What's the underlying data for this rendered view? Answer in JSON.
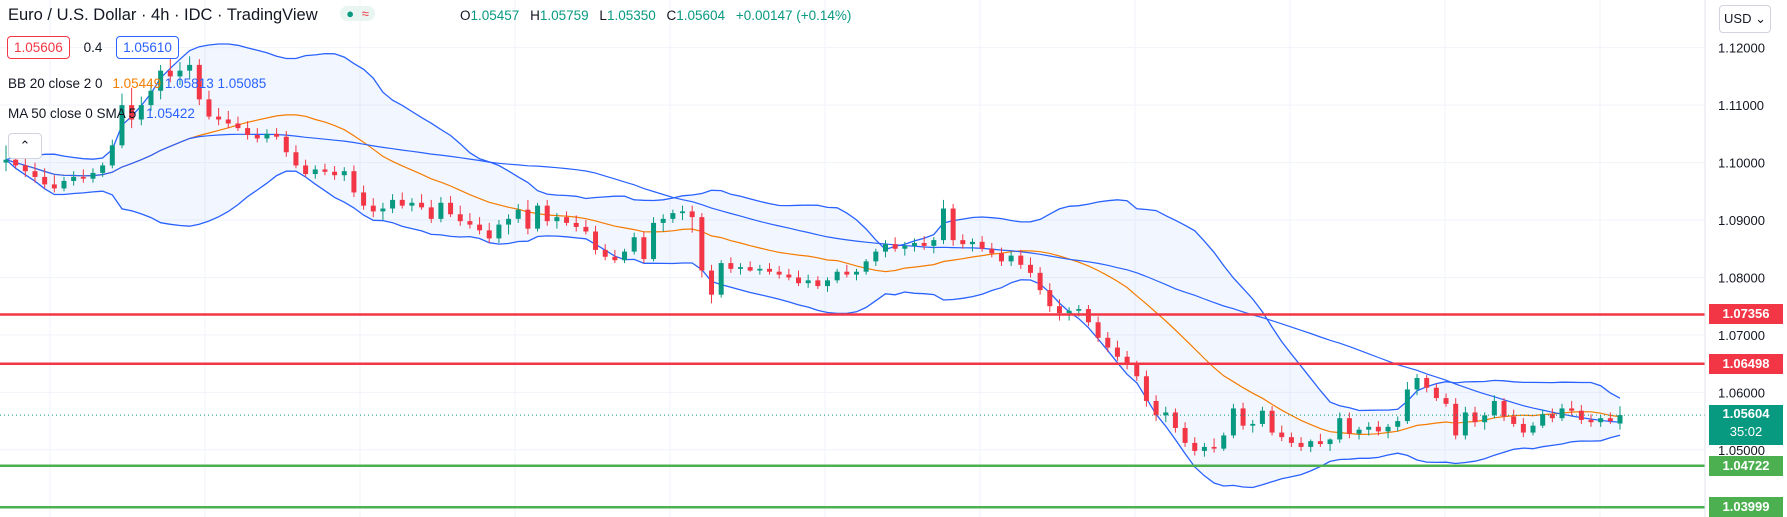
{
  "header": {
    "title": "Euro / U.S. Dollar · 4h · IDC · TradingView",
    "status_dot": "●",
    "status_wave": "≈"
  },
  "ohlc": {
    "o_label": "O",
    "o": "1.05457",
    "h_label": "H",
    "h": "1.05759",
    "l_label": "L",
    "l": "1.05350",
    "c_label": "C",
    "c": "1.05604",
    "change": "+0.00147 (+0.14%)"
  },
  "bidask": {
    "sell": "1.05606",
    "spread": "0.4",
    "buy": "1.05610"
  },
  "indicators": {
    "bb": {
      "name": "BB 20 close 2 0",
      "basis": "1.05449",
      "upper": "1.05813",
      "lower": "1.05085",
      "basis_color": "#f57c00",
      "band_color": "#2962ff"
    },
    "ma": {
      "name": "MA 50 close 0 SMA 5",
      "value": "1.05422",
      "color": "#2962ff"
    }
  },
  "price_axis": {
    "currency": "USD",
    "ticks": [
      "1.12000",
      "1.11000",
      "1.10000",
      "1.09000",
      "1.08000",
      "1.07000",
      "1.06000",
      "1.05000"
    ]
  },
  "horizontal_lines": [
    {
      "value": "1.07356",
      "color": "#f23645"
    },
    {
      "value": "1.06498",
      "color": "#f23645"
    },
    {
      "value": "1.04722",
      "color": "#4caf50"
    },
    {
      "value": "1.03999",
      "color": "#4caf50"
    }
  ],
  "current_price": {
    "value": "1.05604",
    "countdown": "35:02",
    "color": "#089981"
  },
  "colors": {
    "up": "#089981",
    "down": "#f23645",
    "grid": "#f0f3fa"
  },
  "chart_data": {
    "type": "candlestick",
    "ylim": [
      1.0383,
      1.1283
    ],
    "candles": [
      [
        1.1,
        1.103,
        1.0985,
        1.1005
      ],
      [
        1.1005,
        1.102,
        1.099,
        1.0995
      ],
      [
        1.0995,
        1.101,
        1.0975,
        1.0985
      ],
      [
        1.0985,
        1.1,
        1.0965,
        1.0975
      ],
      [
        1.0975,
        1.099,
        1.0955,
        1.0962
      ],
      [
        1.0962,
        1.0978,
        1.0948,
        1.0955
      ],
      [
        1.0955,
        1.0975,
        1.095,
        1.0968
      ],
      [
        1.0968,
        1.0985,
        1.096,
        1.0975
      ],
      [
        1.0975,
        1.0988,
        1.0965,
        1.0972
      ],
      [
        1.0972,
        1.099,
        1.0965,
        1.0982
      ],
      [
        1.0982,
        1.1,
        1.0975,
        1.0995
      ],
      [
        1.0995,
        1.104,
        1.099,
        1.103
      ],
      [
        1.103,
        1.112,
        1.1025,
        1.11
      ],
      [
        1.11,
        1.113,
        1.106,
        1.1075
      ],
      [
        1.1075,
        1.1115,
        1.1065,
        1.11
      ],
      [
        1.11,
        1.114,
        1.109,
        1.1125
      ],
      [
        1.1125,
        1.117,
        1.111,
        1.116
      ],
      [
        1.116,
        1.118,
        1.114,
        1.115
      ],
      [
        1.115,
        1.1175,
        1.1135,
        1.116
      ],
      [
        1.116,
        1.1185,
        1.1145,
        1.117
      ],
      [
        1.117,
        1.118,
        1.11,
        1.111
      ],
      [
        1.111,
        1.1125,
        1.1075,
        1.108
      ],
      [
        1.108,
        1.1095,
        1.1065,
        1.1075
      ],
      [
        1.1075,
        1.109,
        1.106,
        1.1068
      ],
      [
        1.1068,
        1.108,
        1.1055,
        1.106
      ],
      [
        1.106,
        1.1072,
        1.104,
        1.1048
      ],
      [
        1.1048,
        1.106,
        1.1035,
        1.1042
      ],
      [
        1.1042,
        1.1058,
        1.1035,
        1.105
      ],
      [
        1.105,
        1.106,
        1.104,
        1.1045
      ],
      [
        1.1045,
        1.1055,
        1.101,
        1.1018
      ],
      [
        1.1018,
        1.103,
        1.099,
        1.0995
      ],
      [
        1.0995,
        1.1005,
        1.0975,
        1.098
      ],
      [
        1.098,
        1.0995,
        1.0972,
        1.0988
      ],
      [
        1.0988,
        1.0998,
        1.0978,
        1.0984
      ],
      [
        1.0984,
        1.0994,
        1.097,
        1.0978
      ],
      [
        1.0978,
        1.0992,
        1.0968,
        1.0985
      ],
      [
        1.0985,
        1.0995,
        1.094,
        1.0948
      ],
      [
        1.0948,
        1.096,
        1.0918,
        1.0925
      ],
      [
        1.0925,
        1.0938,
        1.0905,
        1.0915
      ],
      [
        1.0915,
        1.093,
        1.09,
        1.092
      ],
      [
        1.092,
        1.0945,
        1.0912,
        1.0935
      ],
      [
        1.0935,
        1.0948,
        1.092,
        1.0925
      ],
      [
        1.0925,
        1.0938,
        1.0915,
        1.093
      ],
      [
        1.093,
        1.0945,
        1.0918,
        1.0922
      ],
      [
        1.0922,
        1.0935,
        1.0895,
        1.0902
      ],
      [
        1.0902,
        1.094,
        1.0896,
        1.093
      ],
      [
        1.093,
        1.0942,
        1.0905,
        1.091
      ],
      [
        1.091,
        1.0925,
        1.089,
        1.0898
      ],
      [
        1.0898,
        1.0912,
        1.0885,
        1.0892
      ],
      [
        1.0892,
        1.0905,
        1.0875,
        1.0882
      ],
      [
        1.0882,
        1.0895,
        1.086,
        1.0868
      ],
      [
        1.0868,
        1.09,
        1.086,
        1.0892
      ],
      [
        1.0892,
        1.091,
        1.0875,
        1.0902
      ],
      [
        1.0902,
        1.0928,
        1.0895,
        1.0918
      ],
      [
        1.0918,
        1.0935,
        1.0875,
        1.0885
      ],
      [
        1.0885,
        1.093,
        1.088,
        1.0925
      ],
      [
        1.0925,
        1.0935,
        1.089,
        1.0898
      ],
      [
        1.0898,
        1.0912,
        1.0885,
        1.0905
      ],
      [
        1.0905,
        1.0915,
        1.089,
        1.0895
      ],
      [
        1.0895,
        1.0908,
        1.088,
        1.0888
      ],
      [
        1.0888,
        1.09,
        1.0875,
        1.088
      ],
      [
        1.088,
        1.089,
        1.084,
        1.0848
      ],
      [
        1.0848,
        1.0858,
        1.083,
        1.0836
      ],
      [
        1.0836,
        1.0848,
        1.0825,
        1.083
      ],
      [
        1.083,
        1.085,
        1.0825,
        1.0845
      ],
      [
        1.0845,
        1.0878,
        1.084,
        1.087
      ],
      [
        1.087,
        1.088,
        1.0825,
        1.0832
      ],
      [
        1.0832,
        1.0905,
        1.0828,
        1.0895
      ],
      [
        1.0895,
        1.091,
        1.088,
        1.0902
      ],
      [
        1.0902,
        1.0918,
        1.0895,
        1.0912
      ],
      [
        1.0912,
        1.0925,
        1.09,
        1.0915
      ],
      [
        1.0915,
        1.0925,
        1.0878,
        1.0905
      ],
      [
        1.0905,
        1.0912,
        1.08,
        1.0812
      ],
      [
        1.0812,
        1.0822,
        1.0755,
        1.077
      ],
      [
        1.077,
        1.083,
        1.0765,
        1.0825
      ],
      [
        1.0825,
        1.0835,
        1.0808,
        1.0815
      ],
      [
        1.0815,
        1.0825,
        1.0805,
        1.0818
      ],
      [
        1.0818,
        1.0828,
        1.081,
        1.0812
      ],
      [
        1.0812,
        1.0822,
        1.0805,
        1.0815
      ],
      [
        1.0815,
        1.0825,
        1.0805,
        1.081
      ],
      [
        1.081,
        1.082,
        1.0798,
        1.0805
      ],
      [
        1.0805,
        1.0815,
        1.0795,
        1.08
      ],
      [
        1.08,
        1.0812,
        1.0785,
        1.079
      ],
      [
        1.079,
        1.0805,
        1.0782,
        1.0795
      ],
      [
        1.0795,
        1.0802,
        1.078,
        1.0785
      ],
      [
        1.0785,
        1.08,
        1.0775,
        1.0795
      ],
      [
        1.0795,
        1.0815,
        1.079,
        1.081
      ],
      [
        1.081,
        1.0822,
        1.08,
        1.0805
      ],
      [
        1.0805,
        1.0815,
        1.0795,
        1.081
      ],
      [
        1.081,
        1.0832,
        1.0805,
        1.0828
      ],
      [
        1.0828,
        1.085,
        1.082,
        1.0845
      ],
      [
        1.0845,
        1.0865,
        1.0835,
        1.0858
      ],
      [
        1.0858,
        1.087,
        1.0845,
        1.085
      ],
      [
        1.085,
        1.0862,
        1.0838,
        1.0855
      ],
      [
        1.0855,
        1.0868,
        1.0845,
        1.086
      ],
      [
        1.086,
        1.0872,
        1.0848,
        1.0855
      ],
      [
        1.0855,
        1.087,
        1.0842,
        1.0865
      ],
      [
        1.0865,
        1.0935,
        1.0858,
        1.092
      ],
      [
        1.092,
        1.0928,
        1.0855,
        1.0865
      ],
      [
        1.0865,
        1.0875,
        1.085,
        1.0858
      ],
      [
        1.0858,
        1.0868,
        1.0845,
        1.0862
      ],
      [
        1.0862,
        1.0872,
        1.0845,
        1.085
      ],
      [
        1.085,
        1.086,
        1.0835,
        1.0842
      ],
      [
        1.0842,
        1.0852,
        1.082,
        1.0828
      ],
      [
        1.0828,
        1.0845,
        1.082,
        1.0838
      ],
      [
        1.0838,
        1.0848,
        1.0815,
        1.0822
      ],
      [
        1.0822,
        1.0835,
        1.08,
        1.0808
      ],
      [
        1.0808,
        1.0818,
        1.077,
        1.0778
      ],
      [
        1.0778,
        1.079,
        1.074,
        1.075
      ],
      [
        1.075,
        1.0762,
        1.0725,
        1.0738
      ],
      [
        1.0738,
        1.0748,
        1.0725,
        1.0742
      ],
      [
        1.0742,
        1.0752,
        1.0732,
        1.0745
      ],
      [
        1.0745,
        1.0752,
        1.0715,
        1.0722
      ],
      [
        1.0722,
        1.0732,
        1.0688,
        1.0695
      ],
      [
        1.0695,
        1.0705,
        1.067,
        1.0678
      ],
      [
        1.0678,
        1.069,
        1.0655,
        1.0662
      ],
      [
        1.0662,
        1.0672,
        1.064,
        1.0648
      ],
      [
        1.0648,
        1.0655,
        1.062,
        1.0628
      ],
      [
        1.0628,
        1.0638,
        1.0575,
        1.0585
      ],
      [
        1.0585,
        1.0595,
        1.055,
        1.056
      ],
      [
        1.056,
        1.0575,
        1.0548,
        1.0565
      ],
      [
        1.0565,
        1.0572,
        1.053,
        1.0538
      ],
      [
        1.0538,
        1.0548,
        1.0505,
        1.0512
      ],
      [
        1.0512,
        1.0522,
        1.049,
        1.0498
      ],
      [
        1.0498,
        1.0512,
        1.0488,
        1.0505
      ],
      [
        1.0505,
        1.052,
        1.0495,
        1.0502
      ],
      [
        1.0502,
        1.053,
        1.0498,
        1.0525
      ],
      [
        1.0525,
        1.058,
        1.052,
        1.0572
      ],
      [
        1.0572,
        1.0582,
        1.0535,
        1.0542
      ],
      [
        1.0542,
        1.0552,
        1.053,
        1.0545
      ],
      [
        1.0545,
        1.0575,
        1.054,
        1.0568
      ],
      [
        1.0568,
        1.0576,
        1.0525,
        1.053
      ],
      [
        1.053,
        1.0542,
        1.0515,
        1.0522
      ],
      [
        1.0522,
        1.053,
        1.0505,
        1.0512
      ],
      [
        1.0512,
        1.0522,
        1.0498,
        1.0505
      ],
      [
        1.0505,
        1.0518,
        1.0496,
        1.0515
      ],
      [
        1.0515,
        1.0528,
        1.0505,
        1.051
      ],
      [
        1.051,
        1.052,
        1.0498,
        1.0518
      ],
      [
        1.0518,
        1.0565,
        1.0512,
        1.0555
      ],
      [
        1.0555,
        1.0565,
        1.052,
        1.0528
      ],
      [
        1.0528,
        1.054,
        1.0518,
        1.0535
      ],
      [
        1.0535,
        1.0548,
        1.0525,
        1.054
      ],
      [
        1.054,
        1.055,
        1.0525,
        1.0532
      ],
      [
        1.0532,
        1.0545,
        1.052,
        1.054
      ],
      [
        1.054,
        1.0558,
        1.0532,
        1.055
      ],
      [
        1.055,
        1.0618,
        1.0545,
        1.0605
      ],
      [
        1.0605,
        1.0632,
        1.0595,
        1.0625
      ],
      [
        1.0625,
        1.063,
        1.06,
        1.0608
      ],
      [
        1.0608,
        1.0615,
        1.0585,
        1.059
      ],
      [
        1.059,
        1.0598,
        1.0575,
        1.058
      ],
      [
        1.058,
        1.059,
        1.0518,
        1.0525
      ],
      [
        1.0525,
        1.0575,
        1.0518,
        1.0565
      ],
      [
        1.0565,
        1.0575,
        1.054,
        1.0548
      ],
      [
        1.0548,
        1.0565,
        1.0535,
        1.056
      ],
      [
        1.056,
        1.0595,
        1.0555,
        1.0585
      ],
      [
        1.0585,
        1.059,
        1.055,
        1.0558
      ],
      [
        1.0558,
        1.057,
        1.054,
        1.0545
      ],
      [
        1.0545,
        1.0555,
        1.0522,
        1.053
      ],
      [
        1.053,
        1.0548,
        1.0525,
        1.0542
      ],
      [
        1.0542,
        1.057,
        1.0538,
        1.0562
      ],
      [
        1.0562,
        1.0572,
        1.0548,
        1.0555
      ],
      [
        1.0555,
        1.058,
        1.055,
        1.0572
      ],
      [
        1.0572,
        1.0585,
        1.056,
        1.0568
      ],
      [
        1.0568,
        1.0578,
        1.0545,
        1.0552
      ],
      [
        1.0552,
        1.0562,
        1.054,
        1.0548
      ],
      [
        1.0548,
        1.056,
        1.054,
        1.0555
      ],
      [
        1.0555,
        1.0565,
        1.0545,
        1.055
      ],
      [
        1.05457,
        1.05759,
        1.0535,
        1.05604
      ]
    ]
  }
}
